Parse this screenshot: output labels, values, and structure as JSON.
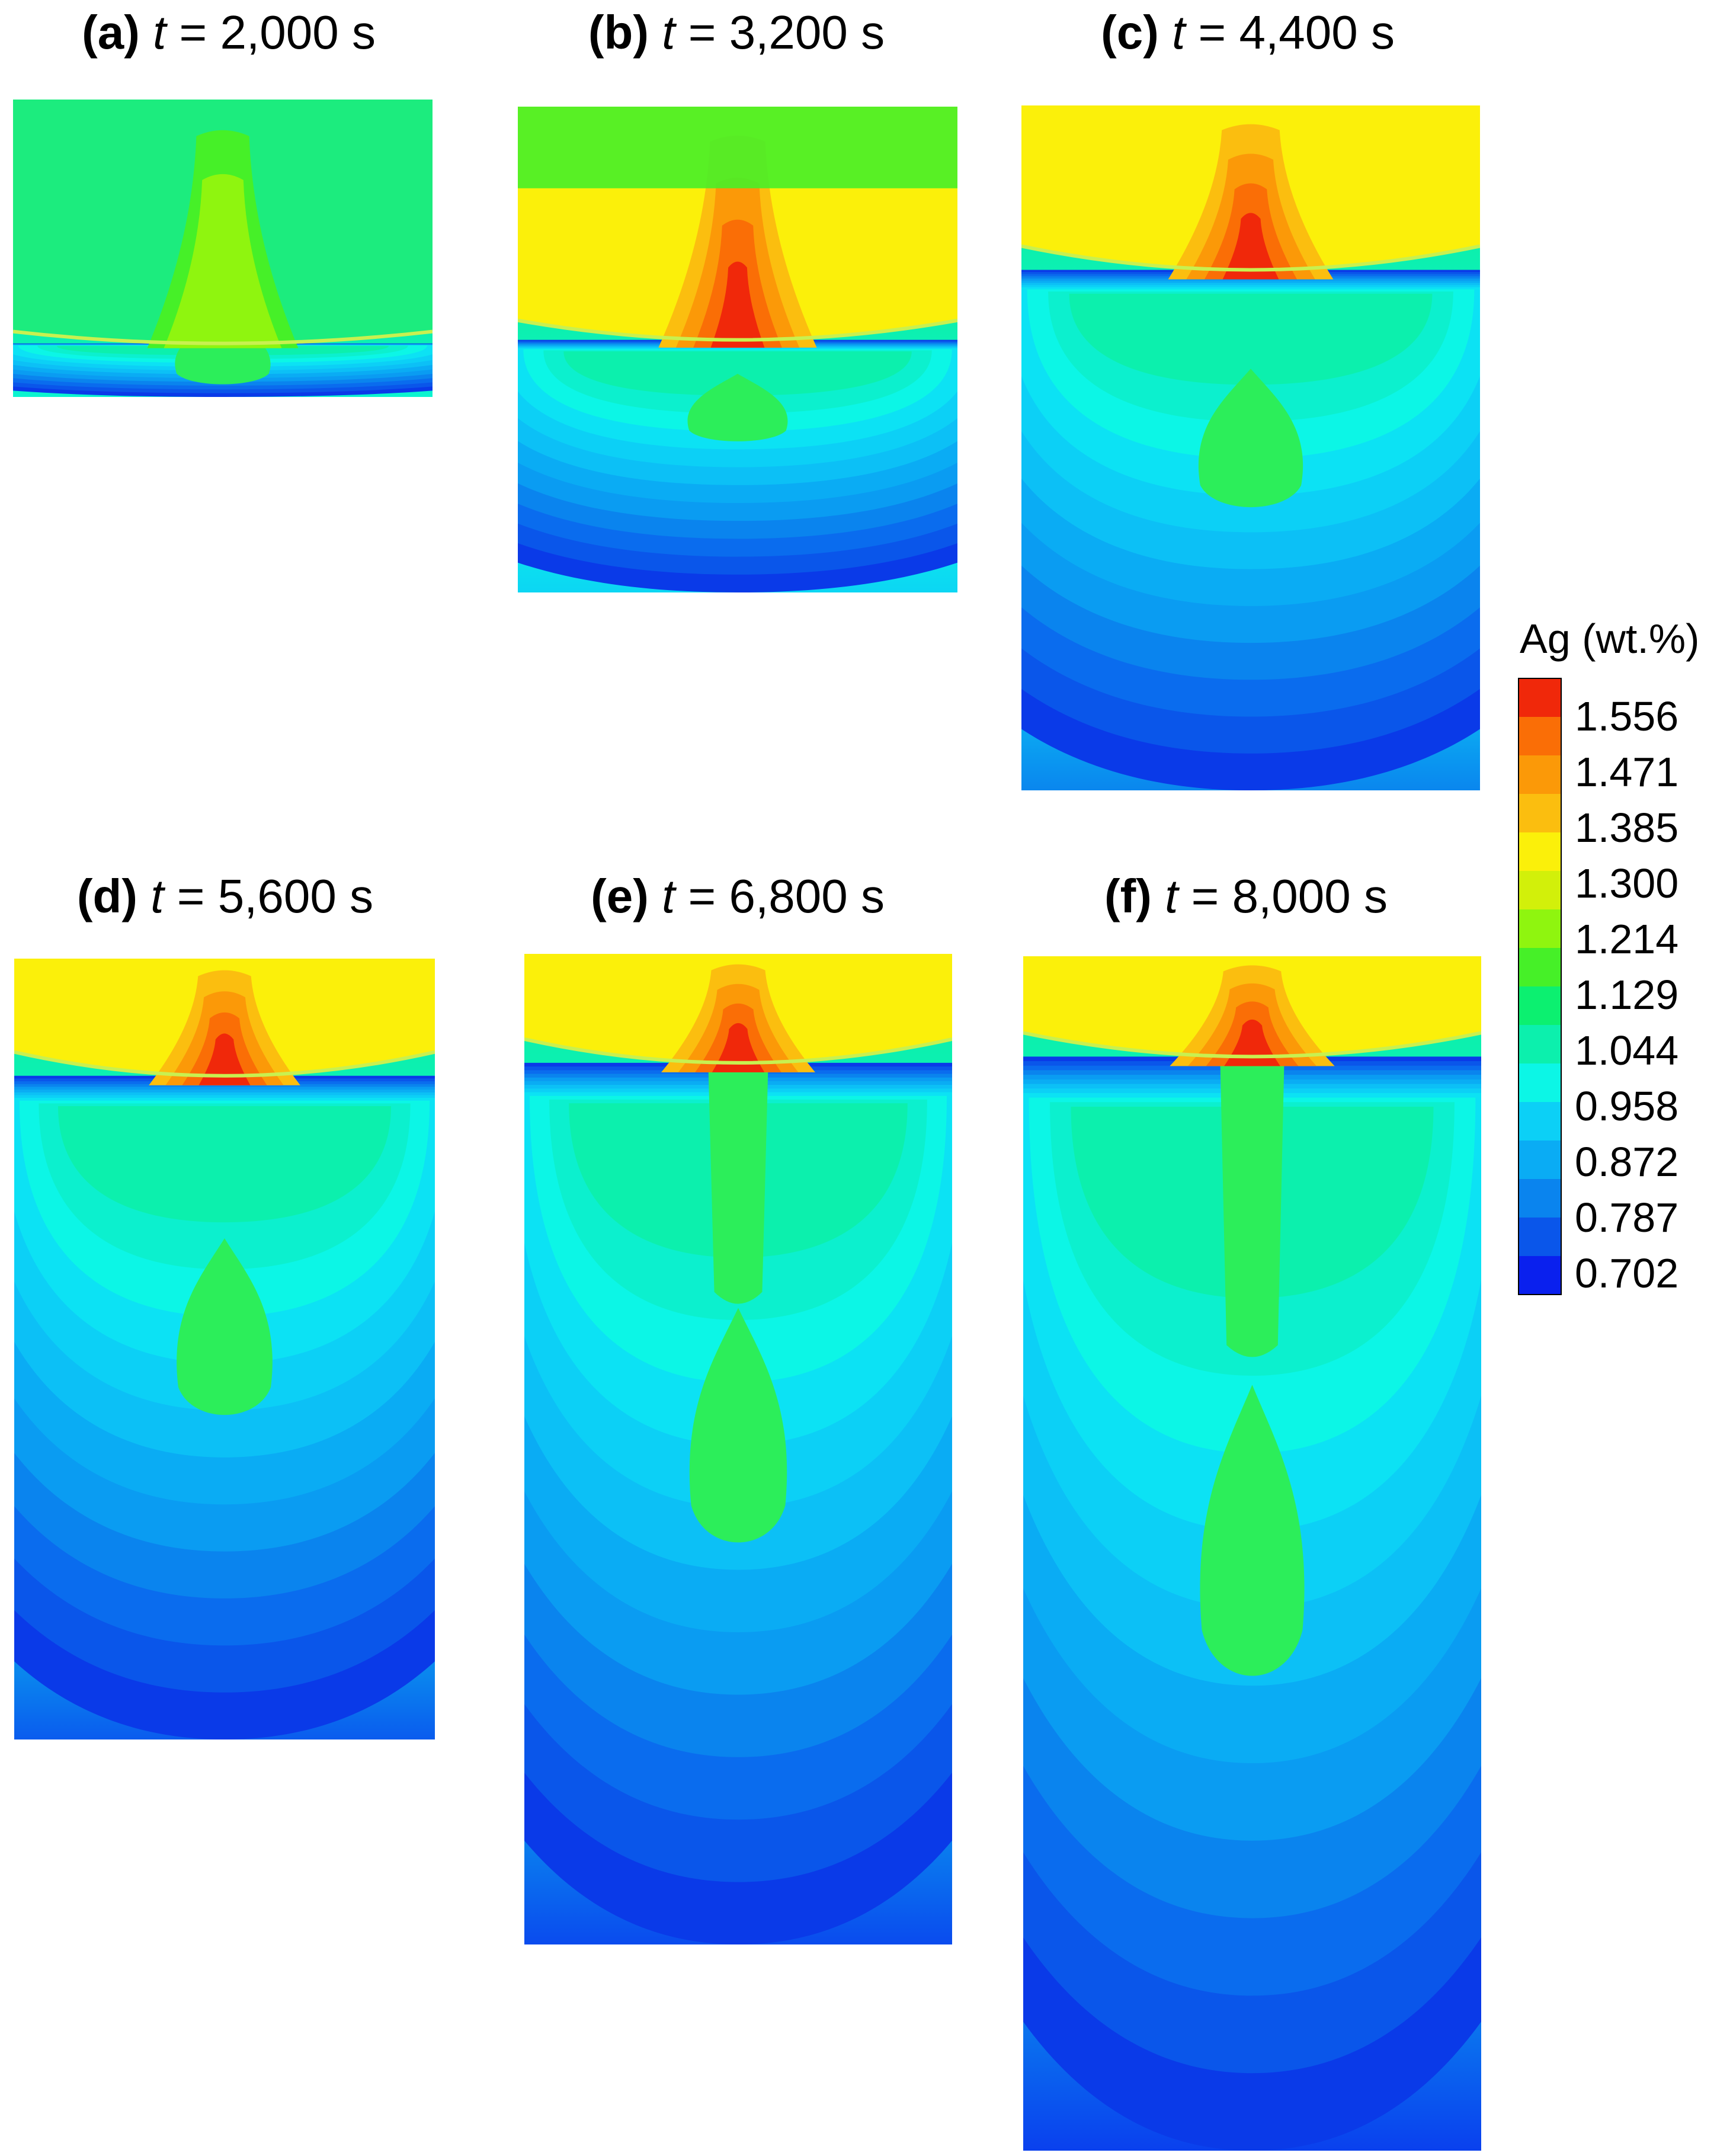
{
  "figure": {
    "panels": [
      {
        "label": "(a)",
        "variable": "t",
        "equals": "=",
        "value": "2,000",
        "unit": "s",
        "interface_fraction": 0.82,
        "weld_level": 0.3,
        "melt_level": 0.72
      },
      {
        "label": "(b)",
        "variable": "t",
        "equals": "=",
        "value": "3,200",
        "unit": "s",
        "interface_fraction": 0.48,
        "weld_level": 0.5,
        "melt_level": 0.8
      },
      {
        "label": "(c)",
        "variable": "t",
        "equals": "=",
        "value": "4,400",
        "unit": "s",
        "interface_fraction": 0.24,
        "weld_level": 0.6,
        "melt_level": 0.88
      },
      {
        "label": "(d)",
        "variable": "t",
        "equals": "=",
        "value": "5,600",
        "unit": "s",
        "interface_fraction": 0.15,
        "weld_level": 0.7,
        "melt_level": 0.92
      },
      {
        "label": "(e)",
        "variable": "t",
        "equals": "=",
        "value": "6,800",
        "unit": "s",
        "interface_fraction": 0.11,
        "weld_level": 0.76,
        "melt_level": 0.95
      },
      {
        "label": "(f)",
        "variable": "t",
        "equals": "=",
        "value": "8,000",
        "unit": "s",
        "interface_fraction": 0.084,
        "weld_level": 0.8,
        "melt_level": 0.97
      }
    ],
    "colorbar": {
      "title": "Ag (wt.%)",
      "levels": [
        "1.556",
        "1.471",
        "1.385",
        "1.300",
        "1.214",
        "1.129",
        "1.044",
        "0.958",
        "0.872",
        "0.787",
        "0.702"
      ],
      "colors": [
        "#f0280a",
        "#fa6e06",
        "#fb9908",
        "#fbbe0f",
        "#fbf00a",
        "#d2f00a",
        "#8ff50f",
        "#46f028",
        "#0cf070",
        "#0cf0ad",
        "#0cf6e6",
        "#0cd0f6",
        "#0aacf4",
        "#0a84ee",
        "#0a56ea",
        "#0a20ee"
      ]
    }
  }
}
